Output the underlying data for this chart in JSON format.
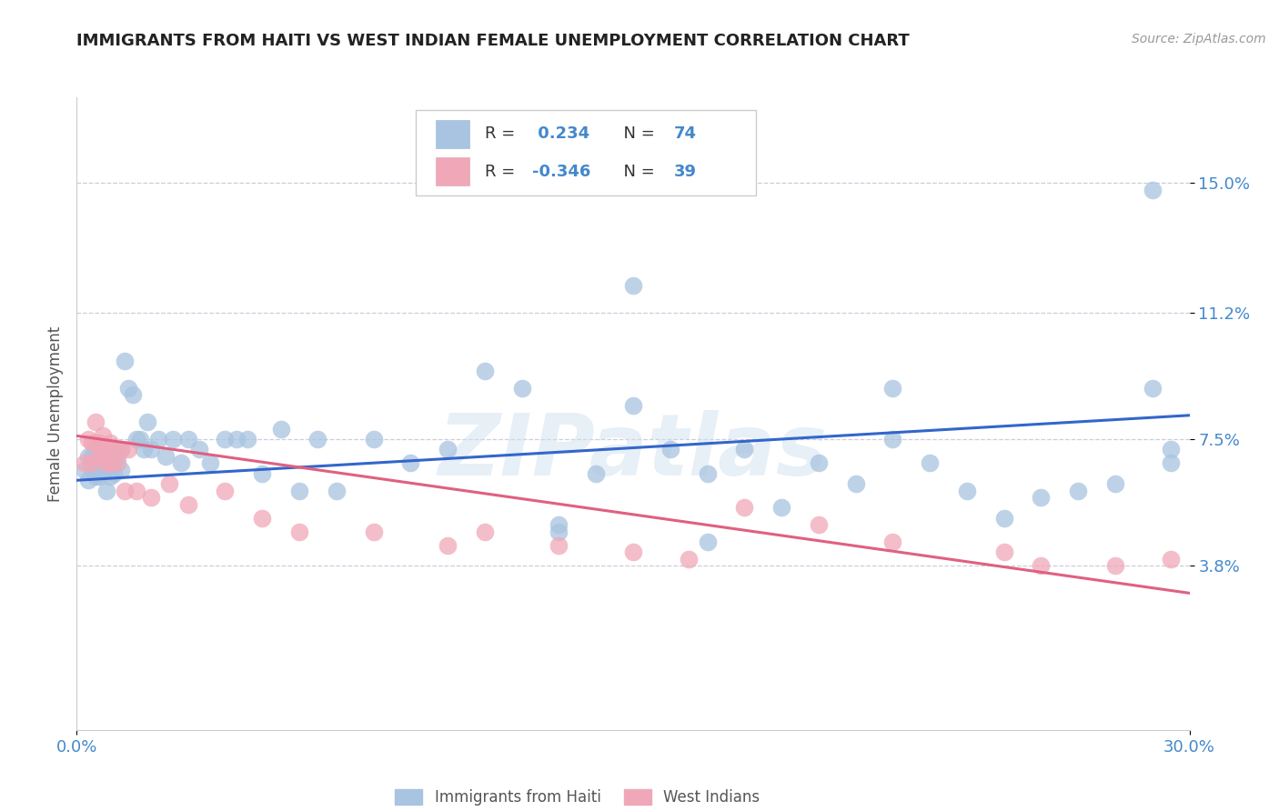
{
  "title": "IMMIGRANTS FROM HAITI VS WEST INDIAN FEMALE UNEMPLOYMENT CORRELATION CHART",
  "source": "Source: ZipAtlas.com",
  "ylabel": "Female Unemployment",
  "xlim": [
    0.0,
    0.3
  ],
  "ylim": [
    -0.01,
    0.175
  ],
  "xtick_labels": [
    "0.0%",
    "30.0%"
  ],
  "xtick_vals": [
    0.0,
    0.3
  ],
  "ytick_labels": [
    "15.0%",
    "11.2%",
    "7.5%",
    "3.8%"
  ],
  "ytick_vals": [
    0.15,
    0.112,
    0.075,
    0.038
  ],
  "haiti_R": 0.234,
  "haiti_N": 74,
  "west_indian_R": -0.346,
  "west_indian_N": 39,
  "haiti_color": "#a8c4e0",
  "west_indian_color": "#f0a8b8",
  "haiti_line_color": "#3366cc",
  "west_indian_line_color": "#e06080",
  "background_color": "#ffffff",
  "title_color": "#222222",
  "title_fontsize": 13,
  "axis_label_color": "#4488cc",
  "ylabel_color": "#555555",
  "watermark_text": "ZIPatlas",
  "legend_label_haiti": "Immigrants from Haiti",
  "legend_label_west": "West Indians",
  "haiti_line_x0": 0.0,
  "haiti_line_y0": 0.063,
  "haiti_line_x1": 0.3,
  "haiti_line_y1": 0.082,
  "west_line_x0": 0.0,
  "west_line_y0": 0.076,
  "west_line_x1": 0.3,
  "west_line_y1": 0.03,
  "haiti_scatter_x": [
    0.002,
    0.003,
    0.003,
    0.004,
    0.004,
    0.005,
    0.005,
    0.005,
    0.006,
    0.006,
    0.006,
    0.007,
    0.007,
    0.008,
    0.008,
    0.009,
    0.009,
    0.01,
    0.01,
    0.011,
    0.012,
    0.012,
    0.013,
    0.014,
    0.015,
    0.016,
    0.017,
    0.018,
    0.019,
    0.02,
    0.022,
    0.024,
    0.026,
    0.028,
    0.03,
    0.033,
    0.036,
    0.04,
    0.043,
    0.046,
    0.05,
    0.055,
    0.06,
    0.065,
    0.07,
    0.08,
    0.09,
    0.1,
    0.11,
    0.12,
    0.13,
    0.14,
    0.15,
    0.16,
    0.17,
    0.18,
    0.19,
    0.2,
    0.21,
    0.22,
    0.23,
    0.24,
    0.25,
    0.26,
    0.27,
    0.28,
    0.29,
    0.295,
    0.15,
    0.22,
    0.13,
    0.17,
    0.29,
    0.295
  ],
  "haiti_scatter_y": [
    0.066,
    0.07,
    0.063,
    0.07,
    0.066,
    0.066,
    0.064,
    0.072,
    0.07,
    0.064,
    0.068,
    0.065,
    0.068,
    0.07,
    0.06,
    0.064,
    0.068,
    0.068,
    0.065,
    0.07,
    0.072,
    0.066,
    0.098,
    0.09,
    0.088,
    0.075,
    0.075,
    0.072,
    0.08,
    0.072,
    0.075,
    0.07,
    0.075,
    0.068,
    0.075,
    0.072,
    0.068,
    0.075,
    0.075,
    0.075,
    0.065,
    0.078,
    0.06,
    0.075,
    0.06,
    0.075,
    0.068,
    0.072,
    0.095,
    0.09,
    0.05,
    0.065,
    0.085,
    0.072,
    0.065,
    0.072,
    0.055,
    0.068,
    0.062,
    0.075,
    0.068,
    0.06,
    0.052,
    0.058,
    0.06,
    0.062,
    0.09,
    0.072,
    0.12,
    0.09,
    0.048,
    0.045,
    0.148,
    0.068
  ],
  "west_scatter_x": [
    0.002,
    0.003,
    0.004,
    0.004,
    0.005,
    0.005,
    0.006,
    0.006,
    0.007,
    0.007,
    0.008,
    0.008,
    0.009,
    0.009,
    0.01,
    0.011,
    0.012,
    0.013,
    0.014,
    0.016,
    0.02,
    0.025,
    0.03,
    0.04,
    0.05,
    0.06,
    0.08,
    0.1,
    0.11,
    0.13,
    0.15,
    0.165,
    0.18,
    0.2,
    0.22,
    0.25,
    0.26,
    0.28,
    0.295
  ],
  "west_scatter_y": [
    0.068,
    0.075,
    0.074,
    0.068,
    0.074,
    0.08,
    0.07,
    0.074,
    0.07,
    0.076,
    0.068,
    0.072,
    0.074,
    0.068,
    0.072,
    0.068,
    0.072,
    0.06,
    0.072,
    0.06,
    0.058,
    0.062,
    0.056,
    0.06,
    0.052,
    0.048,
    0.048,
    0.044,
    0.048,
    0.044,
    0.042,
    0.04,
    0.055,
    0.05,
    0.045,
    0.042,
    0.038,
    0.038,
    0.04
  ]
}
